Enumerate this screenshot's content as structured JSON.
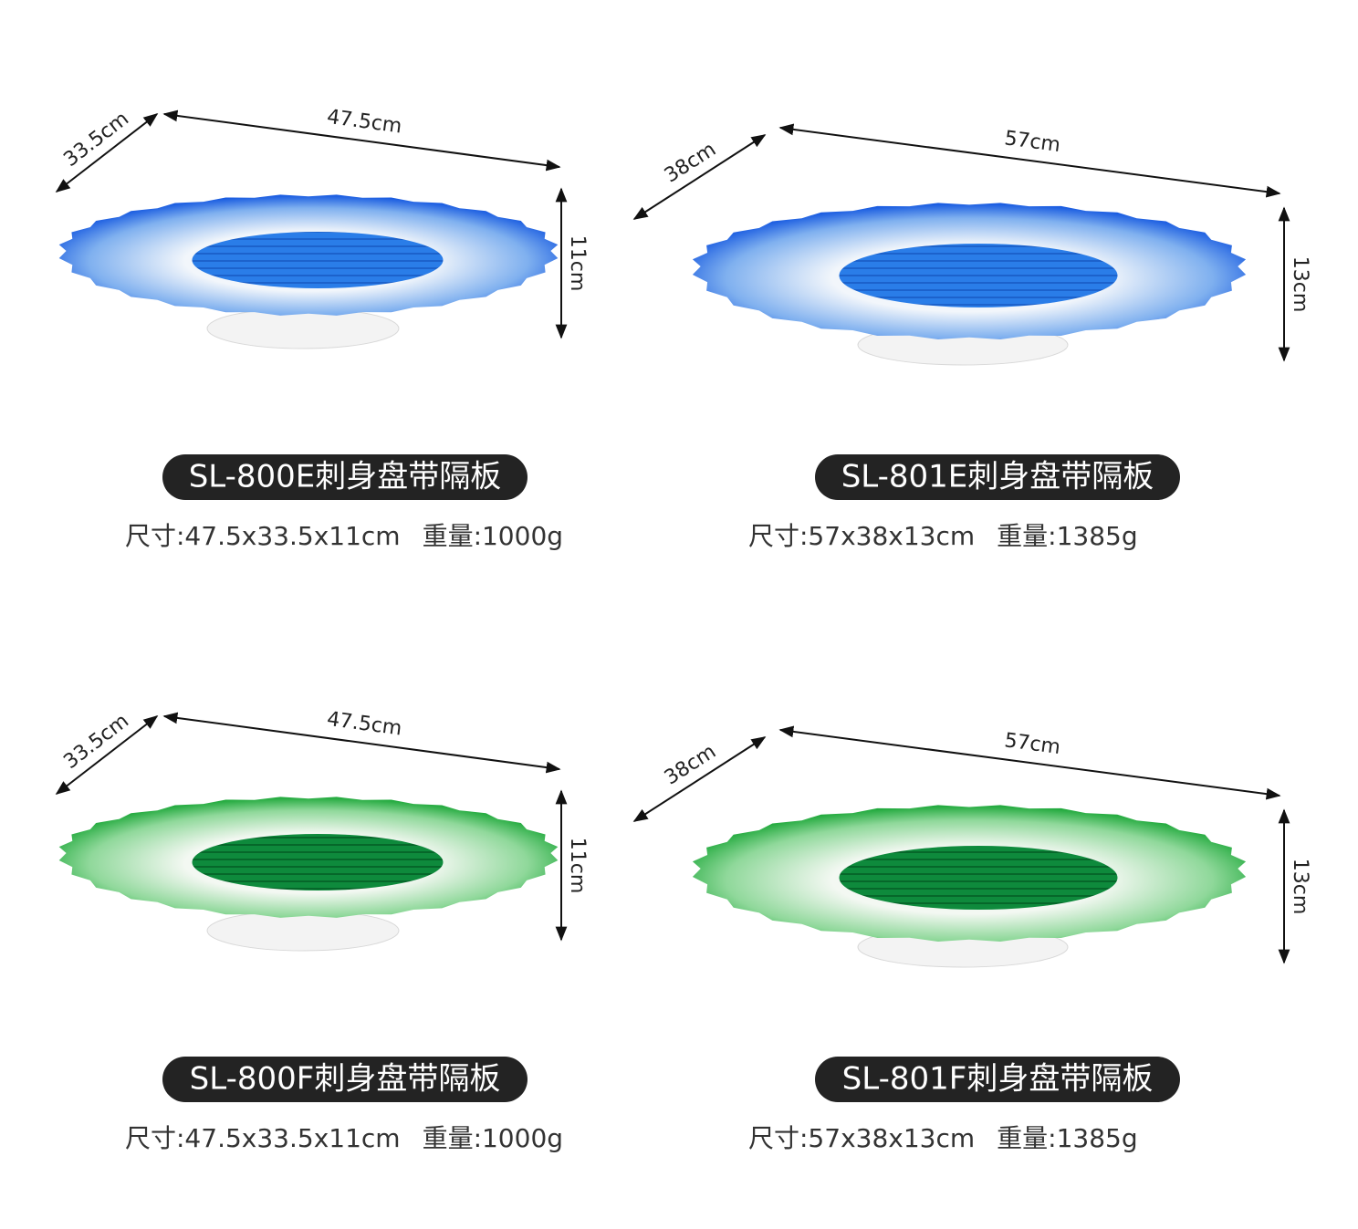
{
  "products": [
    {
      "width": "47.5cm",
      "depth": "33.5cm",
      "height": "11cm",
      "name": "SL-800E刺身盘带隔板",
      "size": "尺寸:47.5x33.5x11cm",
      "weight": "重量:1000g"
    },
    {
      "width": "57cm",
      "depth": "38cm",
      "height": "13cm",
      "name": "SL-801E刺身盘带隔板",
      "size": "尺寸:57x38x13cm",
      "weight": "重量:1385g"
    },
    {
      "width": "47.5cm",
      "depth": "33.5cm",
      "height": "11cm",
      "name": "SL-800F刺身盘带隔板",
      "size": "尺寸:47.5x33.5x11cm",
      "weight": "重量:1000g"
    },
    {
      "width": "57cm",
      "depth": "38cm",
      "height": "13cm",
      "name": "SL-801F刺身盘带隔板",
      "size": "尺寸:57x38x13cm",
      "weight": "重量:1385g"
    }
  ]
}
